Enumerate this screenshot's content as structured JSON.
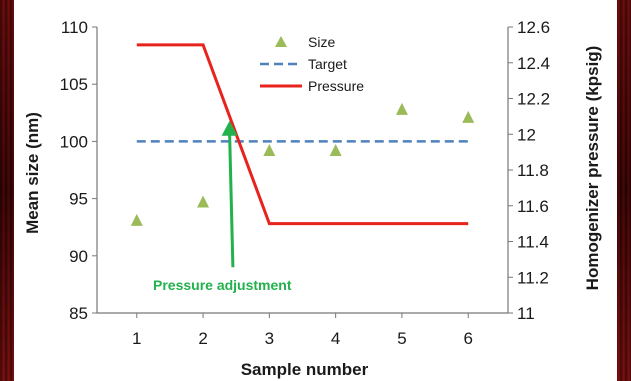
{
  "chart_data": {
    "type": "line",
    "xlabel": "Sample number",
    "ylabel": "Mean size (nm)",
    "y2label": "Homogenizer pressure (kpsig)",
    "x": [
      1,
      2,
      3,
      4,
      5,
      6
    ],
    "xlim": [
      0.4,
      6.6
    ],
    "ylim": [
      85,
      110
    ],
    "y2lim": [
      11,
      12.6
    ],
    "x_ticks": [
      "1",
      "2",
      "3",
      "4",
      "5",
      "6"
    ],
    "y_ticks": [
      "85",
      "90",
      "95",
      "100",
      "105",
      "110"
    ],
    "y2_ticks": [
      "11",
      "11.2",
      "11.4",
      "11.6",
      "11.8",
      "12",
      "12.2",
      "12.4",
      "12.6"
    ],
    "series": [
      {
        "name": "Size",
        "kind": "scatter",
        "marker": "triangle",
        "color": "#9bbb59",
        "axis": "left",
        "x": [
          1,
          2,
          3,
          4,
          5,
          6
        ],
        "y": [
          93.1,
          94.7,
          99.2,
          99.2,
          102.8,
          102.1
        ]
      },
      {
        "name": "Target",
        "kind": "line",
        "style": "dashed",
        "color": "#4f81bd",
        "axis": "left",
        "x": [
          1,
          6
        ],
        "y": [
          100,
          100
        ]
      },
      {
        "name": "Pressure",
        "kind": "line",
        "style": "solid",
        "color": "#e8221c",
        "axis": "right",
        "x": [
          1,
          2,
          3,
          4,
          5,
          6
        ],
        "y": [
          12.5,
          12.5,
          11.5,
          11.5,
          11.5,
          11.5
        ]
      }
    ],
    "annotations": [
      {
        "text": "Pressure adjustment",
        "color": "#22b14c",
        "arrow_from": [
          2.45,
          89
        ],
        "arrow_to": [
          2.4,
          101.8
        ]
      }
    ],
    "legend_position": "top-center",
    "grid": false
  }
}
